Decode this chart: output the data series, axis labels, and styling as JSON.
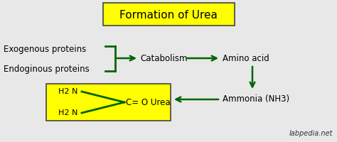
{
  "title": "Formation of Urea",
  "title_box_color": "#FFFF00",
  "title_fontsize": 11,
  "bg_color": "#E8E8E8",
  "arrow_color": "#006400",
  "text_color": "#000000",
  "exogenous_text": "Exogenous proteins",
  "endogenous_text": "Endoginous proteins",
  "catabolism_text": "Catabolism",
  "amino_acid_text": "Amino acid",
  "ammonia_text": "Ammonia (NH3)",
  "urea_box_color": "#FFFF00",
  "urea_h2n_top": "H2 N",
  "urea_h2n_bot": "H2 N",
  "urea_co": "C= O Urea",
  "watermark": "labpedia.net",
  "fig_width": 4.74,
  "fig_height": 2.0,
  "dpi": 100
}
